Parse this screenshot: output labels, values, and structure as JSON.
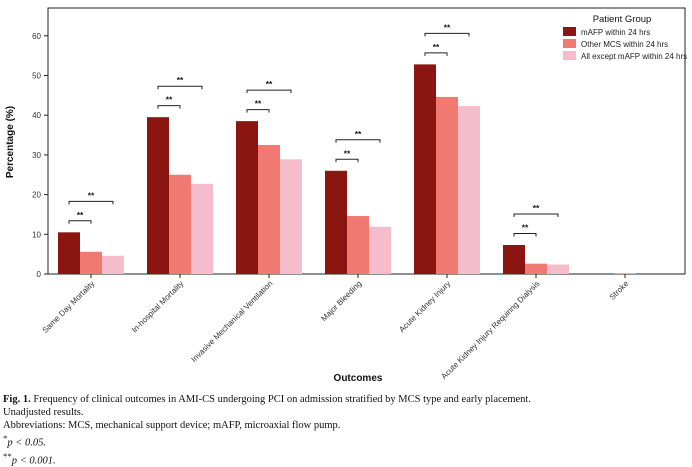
{
  "chart_data": {
    "type": "bar",
    "ylabel": "Percentage (%)",
    "xlabel": "Outcomes",
    "ylim": [
      0,
      67
    ],
    "yticks": [
      0,
      10,
      20,
      30,
      40,
      50,
      60
    ],
    "categories": [
      "Same Day Mortality",
      "In-hospital Mortality",
      "Invasive Mechanical Ventilation",
      "Major Bleeding",
      "Acute Kidney Injury",
      "Acute Kidney Injury Requiring Dialysis",
      "Stroke"
    ],
    "legend": {
      "title": "Patient Group",
      "position": "top-right"
    },
    "series": [
      {
        "name": "mAFP within 24 hrs",
        "color": "#8b1511",
        "values": [
          10.5,
          39.5,
          38.5,
          26.0,
          52.8,
          7.3,
          0.0
        ]
      },
      {
        "name": "Other MCS within 24 hrs",
        "color": "#f07a72",
        "values": [
          5.6,
          25.0,
          32.5,
          14.6,
          44.6,
          2.6,
          0.1
        ]
      },
      {
        "name": "All except mAFP within 24 hrs",
        "color": "#f5bccb",
        "values": [
          4.6,
          22.7,
          28.9,
          11.9,
          42.3,
          2.4,
          0.0
        ]
      }
    ],
    "significance": [
      {
        "category": 0,
        "from": 0,
        "to": 1,
        "label": "**",
        "y": 13.4
      },
      {
        "category": 0,
        "from": 0,
        "to": 2,
        "label": "**",
        "y": 18.3
      },
      {
        "category": 1,
        "from": 0,
        "to": 1,
        "label": "**",
        "y": 42.4
      },
      {
        "category": 1,
        "from": 0,
        "to": 2,
        "label": "**",
        "y": 47.3
      },
      {
        "category": 2,
        "from": 0,
        "to": 1,
        "label": "**",
        "y": 41.4
      },
      {
        "category": 2,
        "from": 0,
        "to": 2,
        "label": "**",
        "y": 46.3
      },
      {
        "category": 3,
        "from": 0,
        "to": 1,
        "label": "**",
        "y": 28.9
      },
      {
        "category": 3,
        "from": 0,
        "to": 2,
        "label": "**",
        "y": 33.8
      },
      {
        "category": 4,
        "from": 0,
        "to": 1,
        "label": "**",
        "y": 55.7
      },
      {
        "category": 4,
        "from": 0,
        "to": 2,
        "label": "**",
        "y": 60.6
      },
      {
        "category": 5,
        "from": 0,
        "to": 1,
        "label": "**",
        "y": 10.2
      },
      {
        "category": 5,
        "from": 0,
        "to": 2,
        "label": "**",
        "y": 15.1
      }
    ]
  },
  "caption": {
    "fig_label": "Fig. 1.",
    "title": "Frequency of clinical outcomes in AMI-CS undergoing PCI on admission stratified by MCS type and early placement.",
    "line2": "Unadjusted results.",
    "line3": "Abbreviations: MCS, mechanical support device; mAFP, microaxial flow pump.",
    "p1_sym": "*",
    "p1_text": "p < 0.05.",
    "p2_sym": "**",
    "p2_text": "p < 0.001."
  }
}
